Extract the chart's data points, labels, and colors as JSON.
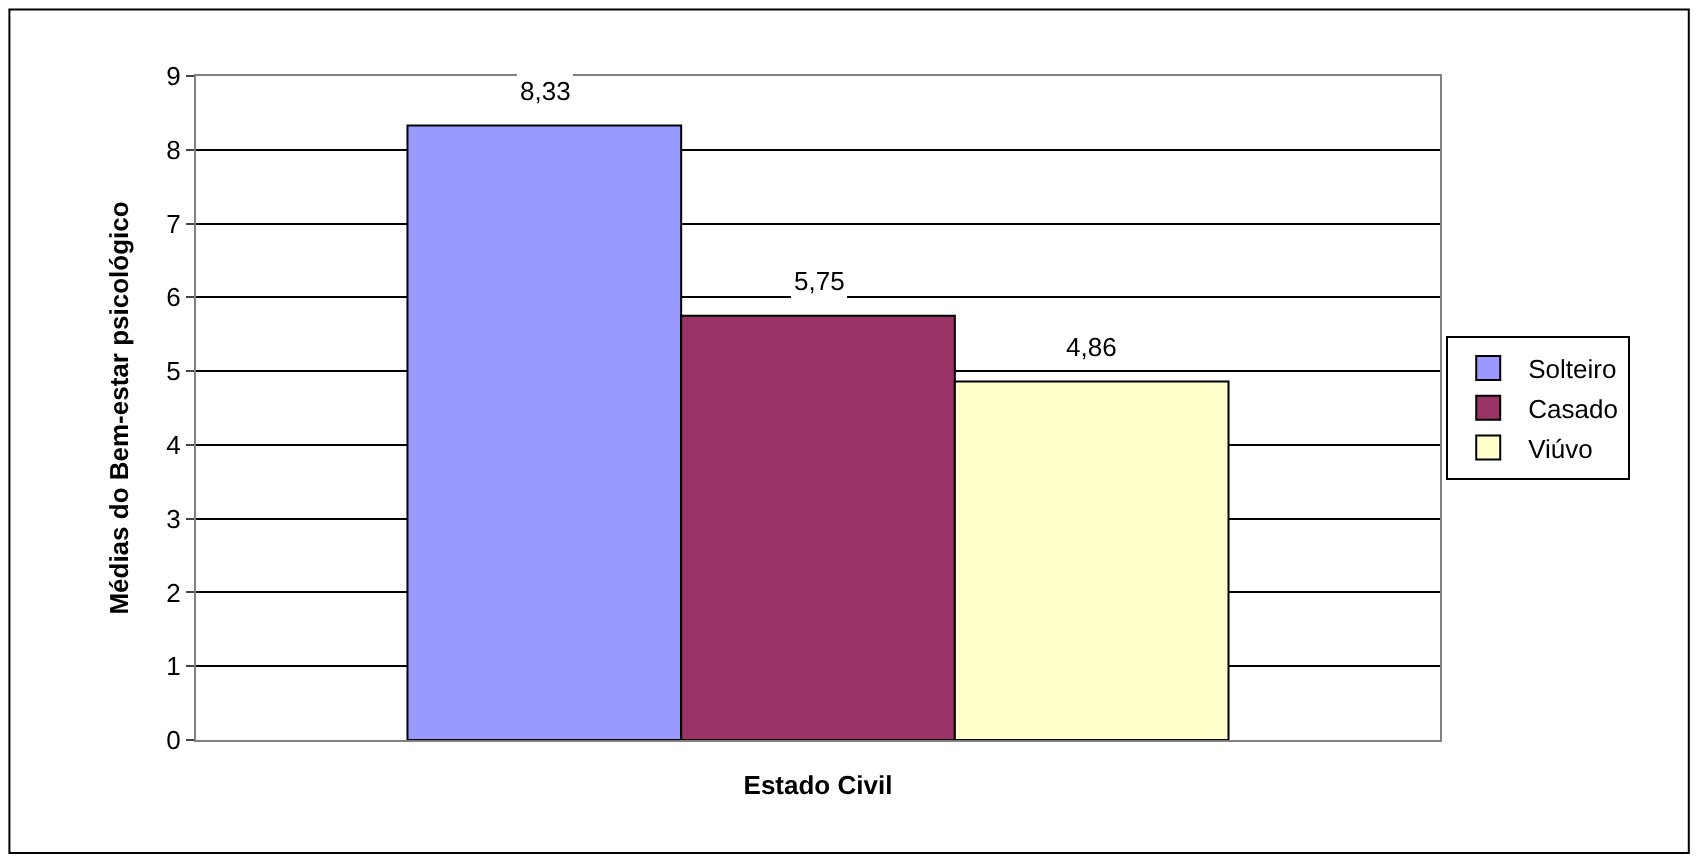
{
  "chart_data": {
    "type": "bar",
    "xlabel": "Estado Civil",
    "ylabel": "Médias do Bem-estar psicológico",
    "categories": [
      null
    ],
    "series": [
      {
        "name": "Solteiro",
        "color": "#9999ff",
        "values": [
          8.33
        ],
        "value_labels": [
          "8,33"
        ]
      },
      {
        "name": "Casado",
        "color": "#993366",
        "values": [
          5.75
        ],
        "value_labels": [
          "5,75"
        ]
      },
      {
        "name": "Viúvo",
        "color": "#ffffcc",
        "values": [
          4.86
        ],
        "value_labels": [
          "4,86"
        ]
      }
    ],
    "ylim": [
      0,
      9
    ],
    "yticks": [
      0,
      1,
      2,
      3,
      4,
      5,
      6,
      7,
      8,
      9
    ],
    "grid": "y",
    "legend": "right"
  }
}
